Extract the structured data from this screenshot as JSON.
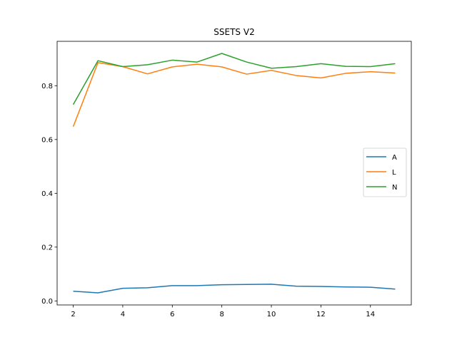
{
  "chart_data": {
    "type": "line",
    "title": "SSETS V2",
    "xlabel": "",
    "ylabel": "",
    "x": [
      2,
      3,
      4,
      5,
      6,
      7,
      8,
      9,
      10,
      11,
      12,
      13,
      14,
      15
    ],
    "xlim": [
      1.35,
      15.65
    ],
    "ylim": [
      -0.015,
      0.965
    ],
    "xticks": [
      2,
      4,
      6,
      8,
      10,
      12,
      14
    ],
    "yticks": [
      0.0,
      0.2,
      0.4,
      0.6,
      0.8
    ],
    "xtick_labels": [
      "2",
      "4",
      "6",
      "8",
      "10",
      "12",
      "14"
    ],
    "ytick_labels": [
      "0.0",
      "0.2",
      "0.4",
      "0.6",
      "0.8"
    ],
    "grid": false,
    "legend_position": "center-right",
    "series": [
      {
        "name": "A",
        "color": "#1f77b4",
        "values": [
          0.036,
          0.03,
          0.047,
          0.049,
          0.057,
          0.057,
          0.06,
          0.061,
          0.062,
          0.055,
          0.054,
          0.052,
          0.051,
          0.044
        ]
      },
      {
        "name": "L",
        "color": "#ff7f0e",
        "values": [
          0.648,
          0.886,
          0.871,
          0.844,
          0.87,
          0.88,
          0.87,
          0.843,
          0.857,
          0.838,
          0.829,
          0.846,
          0.852,
          0.847
        ]
      },
      {
        "name": "N",
        "color": "#2ca02c",
        "values": [
          0.73,
          0.893,
          0.871,
          0.878,
          0.895,
          0.888,
          0.92,
          0.888,
          0.865,
          0.871,
          0.882,
          0.872,
          0.871,
          0.882
        ]
      }
    ]
  }
}
